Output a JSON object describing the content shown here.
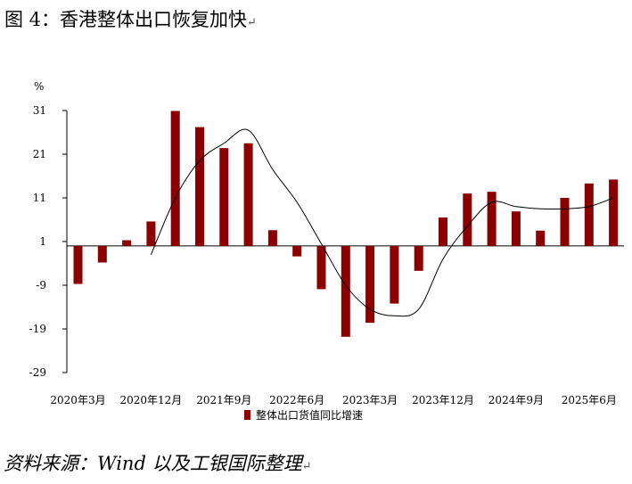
{
  "header": {
    "title": "图 4：香港整体出口恢复加快",
    "title_mark": "↵"
  },
  "footer": {
    "source": "资料来源：Wind 以及工银国际整理",
    "source_mark": "↵"
  },
  "chart_data": {
    "type": "bar",
    "unit_label": "%",
    "y_ticks": [
      31,
      21,
      11,
      1,
      -9,
      -19,
      -29
    ],
    "ylim": [
      -29,
      31
    ],
    "x_tick_labels": [
      "2020年3月",
      "2020年12月",
      "2021年9月",
      "2022年6月",
      "2023年3月",
      "2023年12月",
      "2024年9月",
      "2025年6月"
    ],
    "categories": [
      "2020年3月",
      "2020年6月",
      "2020年9月",
      "2020年12月",
      "2021年3月",
      "2021年6月",
      "2021年9月",
      "2021年12月",
      "2022年3月",
      "2022年6月",
      "2022年9月",
      "2022年12月",
      "2023年3月",
      "2023年6月",
      "2023年9月",
      "2023年12月",
      "2024年3月",
      "2024年6月",
      "2024年9月",
      "2024年12月",
      "2025年3月",
      "2025年6月",
      "2025年9月"
    ],
    "series": [
      {
        "name": "整体出口货值同比增速",
        "type": "bar",
        "color": "#8B0000",
        "values": [
          -8.7,
          -3.8,
          1.3,
          5.6,
          30.9,
          27.2,
          22.4,
          23.5,
          3.6,
          -2.4,
          -9.9,
          -20.8,
          -17.6,
          -13.2,
          -5.7,
          6.5,
          12.0,
          12.4,
          7.9,
          3.5,
          11.0,
          14.3,
          15.2
        ]
      },
      {
        "type": "line",
        "color": "#000000",
        "values": [
          null,
          null,
          null,
          -2.0,
          11.0,
          19.5,
          23.5,
          26.5,
          17.5,
          10.0,
          0.5,
          -9.0,
          -14.5,
          -16.0,
          -14.5,
          -3.0,
          4.5,
          10.0,
          9.0,
          8.5,
          8.5,
          9.0,
          11.0
        ]
      }
    ],
    "legend_position": "bottom",
    "grid": false
  }
}
